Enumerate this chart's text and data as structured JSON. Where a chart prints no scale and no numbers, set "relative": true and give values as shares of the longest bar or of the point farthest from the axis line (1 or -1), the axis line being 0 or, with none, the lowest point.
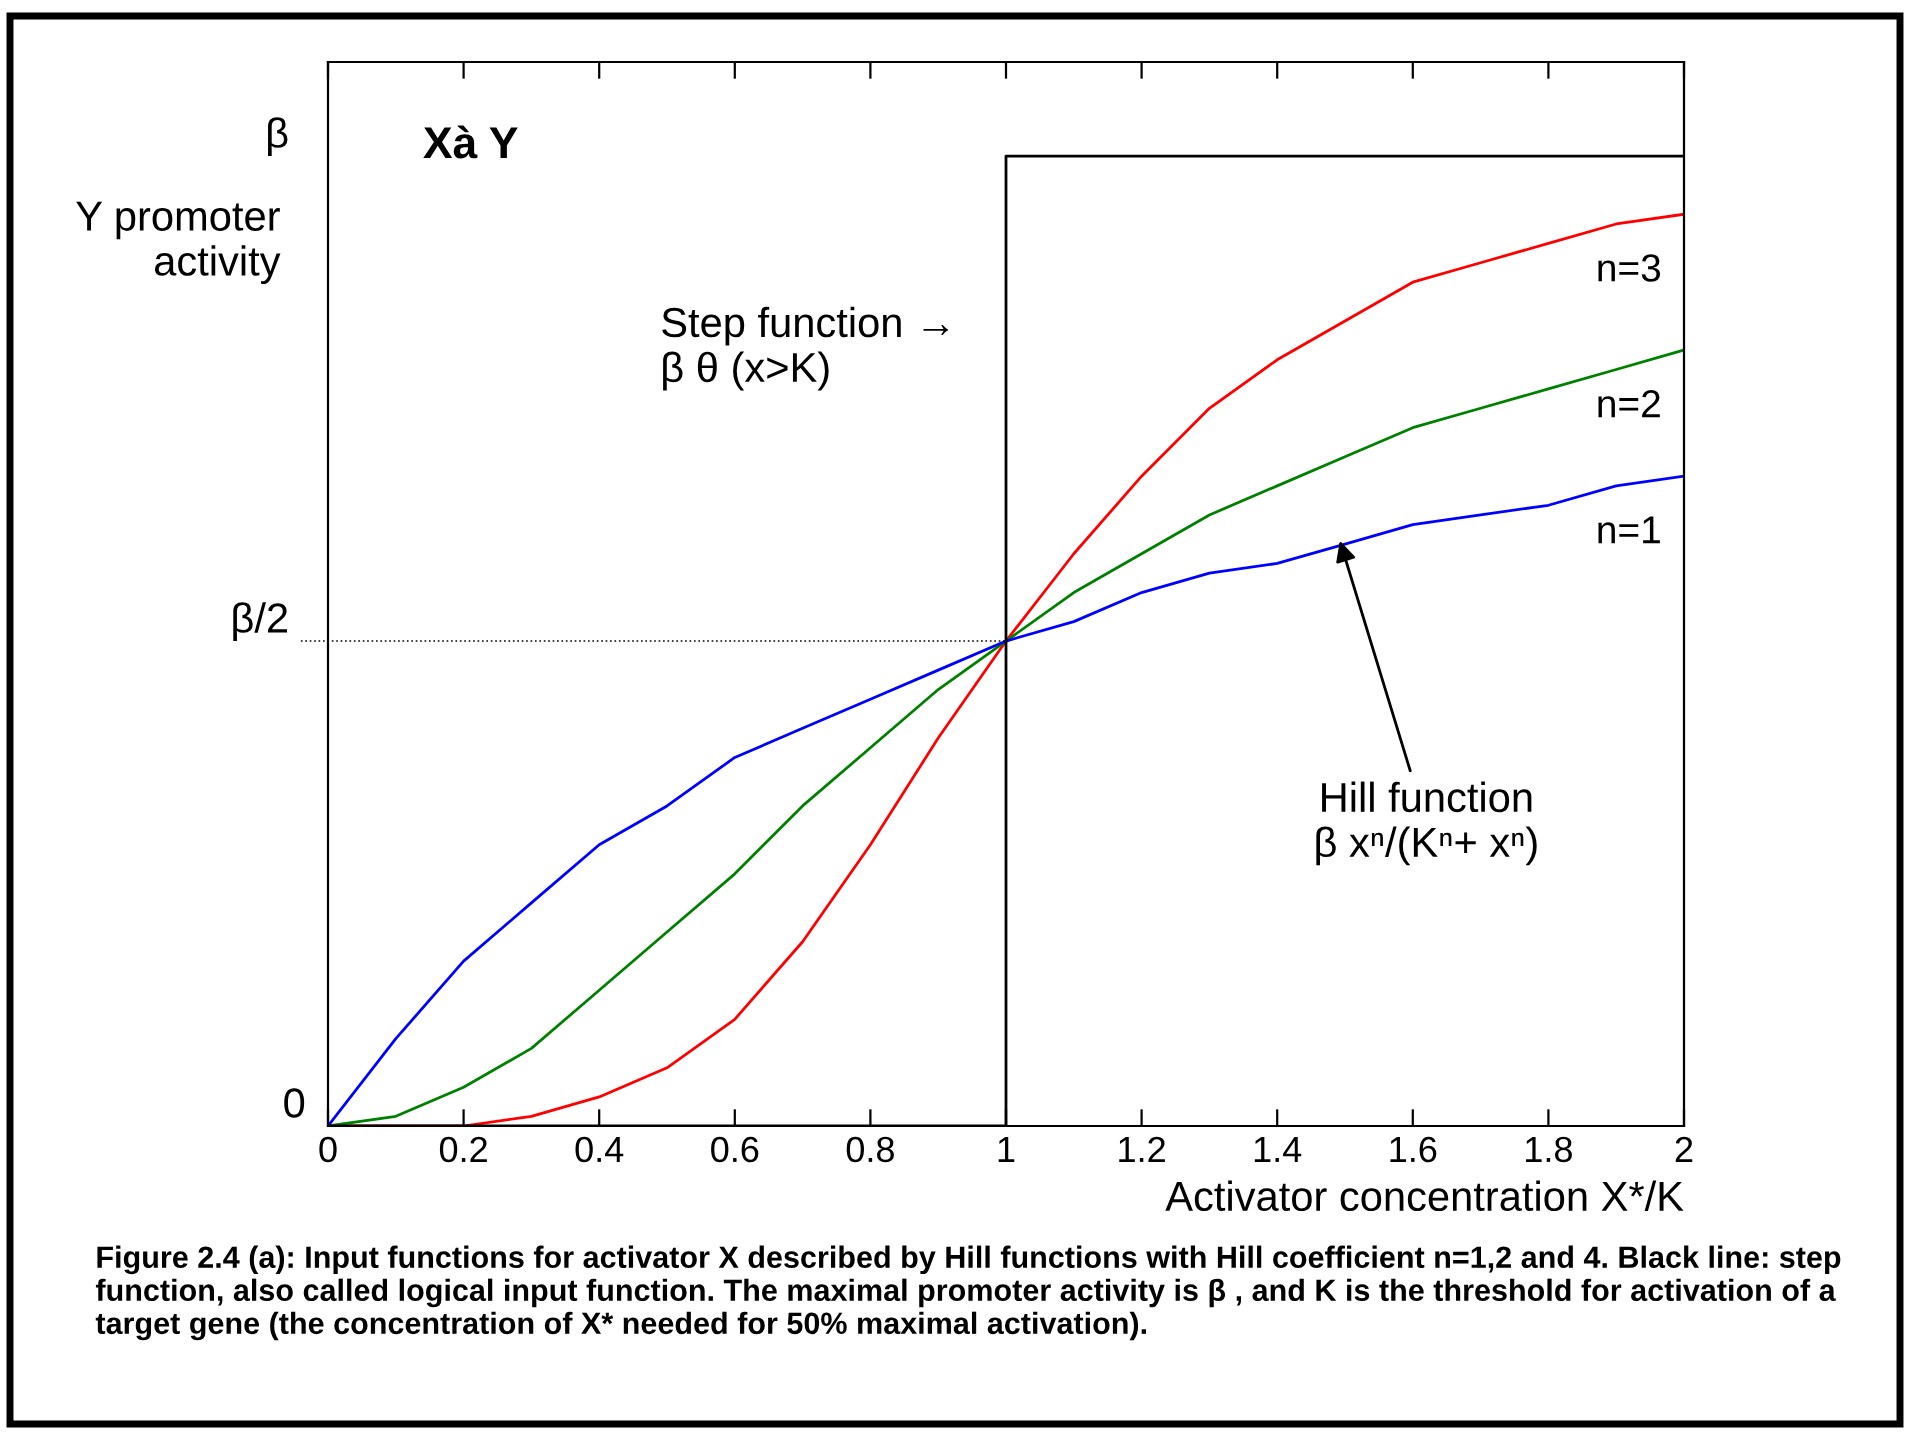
{
  "chart_data": {
    "type": "line",
    "title": "Xà Y",
    "xlabel": "Activator concentration X*/K",
    "ylabel": "Y promoter\nactivity",
    "x": [
      0,
      0.1,
      0.2,
      0.3,
      0.4,
      0.5,
      0.6,
      0.7,
      0.8,
      0.9,
      1,
      1.1,
      1.2,
      1.3,
      1.4,
      1.5,
      1.6,
      1.7,
      1.8,
      1.9,
      2
    ],
    "series": [
      {
        "name": "n=3",
        "color": "#ff0000",
        "values": [
          0,
          0.0,
          0.0,
          0.01,
          0.03,
          0.06,
          0.11,
          0.19,
          0.29,
          0.4,
          0.5,
          0.59,
          0.67,
          0.74,
          0.79,
          0.83,
          0.87,
          0.89,
          0.91,
          0.93,
          0.94
        ]
      },
      {
        "name": "n=2",
        "color": "#008000",
        "values": [
          0,
          0.01,
          0.04,
          0.08,
          0.14,
          0.2,
          0.26,
          0.33,
          0.39,
          0.45,
          0.5,
          0.55,
          0.59,
          0.63,
          0.66,
          0.69,
          0.72,
          0.74,
          0.76,
          0.78,
          0.8
        ]
      },
      {
        "name": "n=1",
        "color": "#0000ff",
        "values": [
          0,
          0.09,
          0.17,
          0.23,
          0.29,
          0.33,
          0.38,
          0.41,
          0.44,
          0.47,
          0.5,
          0.52,
          0.55,
          0.57,
          0.58,
          0.6,
          0.62,
          0.63,
          0.64,
          0.66,
          0.67
        ]
      },
      {
        "type": "step",
        "color": "#000000",
        "x": [
          0,
          1,
          2
        ],
        "values": [
          0,
          1,
          1
        ]
      }
    ],
    "xlim": [
      0,
      2
    ],
    "xticks": [
      0,
      0.2,
      0.4,
      0.6,
      0.8,
      1,
      1.2,
      1.4,
      1.6,
      1.8,
      2
    ],
    "relative": true,
    "ref_lines": [
      {
        "axis": "y",
        "value": 0.5,
        "label": "β/2",
        "color": "#000000",
        "line_style": "dotted"
      }
    ],
    "annotations": [
      "Step function →\nβ θ (x>K)",
      "Hill function\nβ xⁿ/(Kⁿ+ xⁿ)",
      "Figure 2.4 (a): Input functions for activator X described by Hill functions with Hill coefficient n=1,2 and 4. Black line: step function, also called logical input function. The maximal promoter activity is β , and K is the threshold for activation of a target gene (the concentration of X* needed for 50% maximal activation).",
      "0",
      "β"
    ],
    "grid": false,
    "legend": false,
    "marker": "none",
    "line_style": "solid"
  }
}
